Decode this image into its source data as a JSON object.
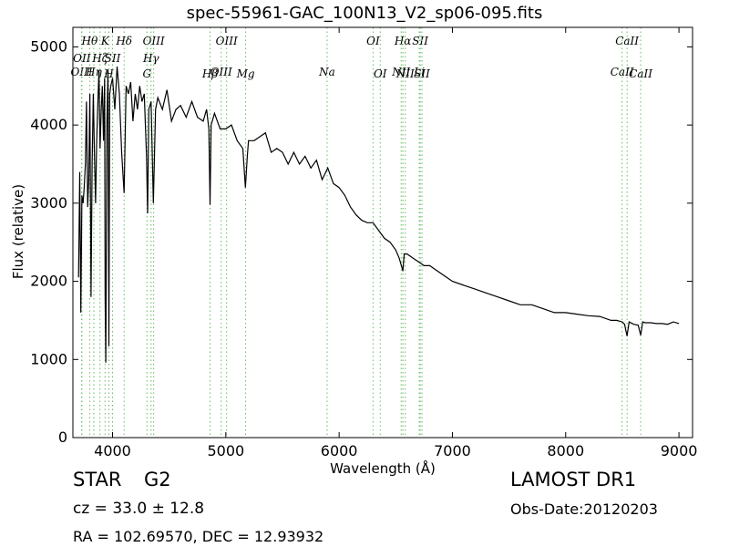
{
  "chart_data": {
    "type": "line",
    "title": "spec-55961-GAC_100N13_V2_sp06-095.fits",
    "xlabel": "Wavelength (Å)",
    "ylabel": "Flux (relative)",
    "xlim": [
      3650,
      9120
    ],
    "ylim": [
      0,
      5250
    ],
    "xticks": [
      4000,
      5000,
      6000,
      7000,
      8000,
      9000
    ],
    "xtick_labels": [
      "4000",
      "5000",
      "6000",
      "7000",
      "8000",
      "9000"
    ],
    "yticks": [
      0,
      1000,
      2000,
      3000,
      4000,
      5000
    ],
    "ytick_labels": [
      "0",
      "1000",
      "2000",
      "3000",
      "4000",
      "5000"
    ],
    "grid": false,
    "series": [
      {
        "color": "#000000",
        "x": [
          3700,
          3710,
          3720,
          3730,
          3740,
          3750,
          3760,
          3770,
          3780,
          3790,
          3800,
          3810,
          3820,
          3830,
          3840,
          3850,
          3860,
          3870,
          3880,
          3890,
          3900,
          3910,
          3920,
          3930,
          3935,
          3940,
          3950,
          3960,
          3968,
          3975,
          3985,
          4000,
          4020,
          4040,
          4060,
          4080,
          4102,
          4120,
          4140,
          4160,
          4180,
          4200,
          4220,
          4240,
          4260,
          4280,
          4300,
          4310,
          4320,
          4340,
          4360,
          4380,
          4400,
          4440,
          4480,
          4520,
          4560,
          4600,
          4650,
          4700,
          4750,
          4800,
          4830,
          4850,
          4861,
          4870,
          4900,
          4950,
          5000,
          5050,
          5100,
          5150,
          5173,
          5190,
          5200,
          5250,
          5300,
          5350,
          5400,
          5450,
          5500,
          5550,
          5600,
          5650,
          5700,
          5750,
          5800,
          5850,
          5900,
          5950,
          6000,
          6050,
          6100,
          6150,
          6200,
          6250,
          6300,
          6350,
          6400,
          6450,
          6500,
          6530,
          6550,
          6563,
          6575,
          6600,
          6650,
          6700,
          6750,
          6800,
          6850,
          6900,
          6950,
          7000,
          7100,
          7200,
          7300,
          7400,
          7500,
          7600,
          7700,
          7800,
          7900,
          8000,
          8100,
          8200,
          8300,
          8400,
          8450,
          8500,
          8520,
          8542,
          8560,
          8600,
          8640,
          8662,
          8680,
          8700,
          8750,
          8800,
          8850,
          8900,
          8950,
          9000
        ],
        "y": [
          2050,
          3400,
          1600,
          3100,
          3000,
          3200,
          3500,
          4300,
          2950,
          3300,
          4400,
          1800,
          3500,
          4400,
          3650,
          3000,
          3800,
          4250,
          4700,
          3700,
          4200,
          4500,
          3800,
          4600,
          1800,
          960,
          4000,
          4700,
          1170,
          4400,
          4500,
          4600,
          4200,
          4750,
          4400,
          3650,
          3130,
          4500,
          4400,
          4550,
          4050,
          4400,
          4200,
          4500,
          4300,
          4400,
          3600,
          2870,
          4200,
          4300,
          3000,
          4200,
          4350,
          4200,
          4450,
          4050,
          4200,
          4250,
          4100,
          4300,
          4100,
          4050,
          4200,
          3950,
          2980,
          4000,
          4150,
          3950,
          3950,
          4000,
          3800,
          3700,
          3200,
          3600,
          3800,
          3800,
          3850,
          3900,
          3650,
          3700,
          3650,
          3500,
          3650,
          3500,
          3600,
          3450,
          3550,
          3300,
          3450,
          3250,
          3200,
          3100,
          2950,
          2850,
          2780,
          2750,
          2750,
          2650,
          2550,
          2500,
          2400,
          2300,
          2200,
          2130,
          2350,
          2350,
          2300,
          2250,
          2200,
          2200,
          2150,
          2100,
          2050,
          2000,
          1950,
          1900,
          1850,
          1800,
          1750,
          1700,
          1700,
          1650,
          1600,
          1600,
          1580,
          1560,
          1550,
          1500,
          1500,
          1480,
          1450,
          1300,
          1480,
          1450,
          1440,
          1310,
          1480,
          1470,
          1470,
          1460,
          1460,
          1450,
          1480,
          1460
        ]
      }
    ],
    "spectral_lines": [
      {
        "label": "OIII",
        "x": 3727,
        "row": 2
      },
      {
        "label": "OII",
        "x": 3729,
        "row": 1
      },
      {
        "label": "Hθ",
        "x": 3798,
        "row": 0
      },
      {
        "label": "Hη",
        "x": 3835,
        "row": 2
      },
      {
        "label": "Hζ",
        "x": 3889,
        "row": 1
      },
      {
        "label": "K",
        "x": 3934,
        "row": 0
      },
      {
        "label": "H",
        "x": 3968,
        "row": 3
      },
      {
        "label": "SII",
        "x": 4000,
        "row": 1
      },
      {
        "label": "Hδ",
        "x": 4102,
        "row": 0
      },
      {
        "label": "OIII",
        "x": 4363,
        "row": 0
      },
      {
        "label": "Hγ",
        "x": 4340,
        "row": 1
      },
      {
        "label": "G",
        "x": 4304,
        "row": 3
      },
      {
        "label": "Hβ",
        "x": 4861,
        "row": 3
      },
      {
        "label": "OIII",
        "x": 5007,
        "row": 0
      },
      {
        "label": "OIII",
        "x": 4959,
        "row": 2
      },
      {
        "label": "Mg",
        "x": 5175,
        "row": 3
      },
      {
        "label": "Na",
        "x": 5894,
        "row": 2
      },
      {
        "label": "OI",
        "x": 6300,
        "row": 0
      },
      {
        "label": "OI",
        "x": 6363,
        "row": 3
      },
      {
        "label": "Hα",
        "x": 6563,
        "row": 0
      },
      {
        "label": "NII",
        "x": 6548,
        "row": 2
      },
      {
        "label": "NII",
        "x": 6584,
        "row": 3
      },
      {
        "label": "SII",
        "x": 6716,
        "row": 0
      },
      {
        "label": "Li",
        "x": 6708,
        "row": 2
      },
      {
        "label": "SII",
        "x": 6731,
        "row": 3
      },
      {
        "label": "CaII",
        "x": 8542,
        "row": 0
      },
      {
        "label": "CaII",
        "x": 8498,
        "row": 2
      },
      {
        "label": "CaII",
        "x": 8662,
        "row": 3
      }
    ]
  },
  "info": {
    "object_class": "STAR",
    "subclass": "G2",
    "survey": "LAMOST DR1",
    "cz": "cz = 33.0  ± 12.8",
    "obs_date": "Obs-Date:20120203",
    "coords": "RA = 102.69570, DEC = 12.93932"
  },
  "colors": {
    "spectrum": "#000000",
    "line_markers": "#66bb66",
    "frame": "#000000",
    "background": "#ffffff"
  }
}
